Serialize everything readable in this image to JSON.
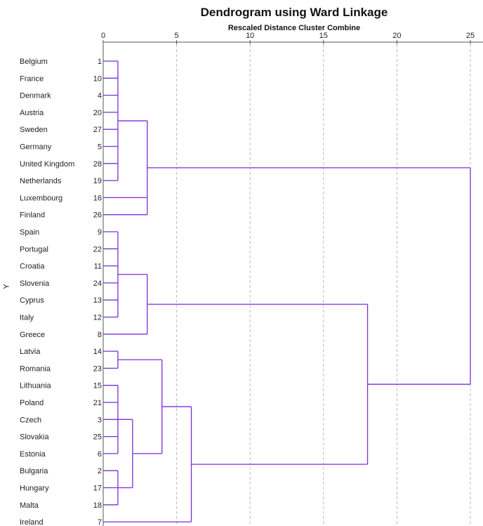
{
  "title": "Dendrogram using Ward Linkage",
  "subtitle": "Rescaled Distance Cluster Combine",
  "y_axis_label": "Y",
  "colors": {
    "line": "#7b2fd6",
    "grid": "#bbbbbb",
    "axis": "#555555",
    "text": "#222222"
  },
  "chart_data": {
    "type": "dendrogram",
    "title": "Dendrogram using Ward Linkage",
    "xlabel": "Rescaled Distance Cluster Combine",
    "ylabel": "Y",
    "x_ticks": [
      0,
      5,
      10,
      15,
      20,
      25
    ],
    "xlim": [
      0,
      25
    ],
    "grid": true,
    "leaves": [
      {
        "name": "Belgium",
        "id": "1"
      },
      {
        "name": "France",
        "id": "10"
      },
      {
        "name": "Denmark",
        "id": "4"
      },
      {
        "name": "Austria",
        "id": "20"
      },
      {
        "name": "Sweden",
        "id": "27"
      },
      {
        "name": "Germany",
        "id": "5"
      },
      {
        "name": "United Kingdom",
        "id": "28"
      },
      {
        "name": "Netherlands",
        "id": "19"
      },
      {
        "name": "Luxembourg",
        "id": "16"
      },
      {
        "name": "Finland",
        "id": "26"
      },
      {
        "name": "Spain",
        "id": "9"
      },
      {
        "name": "Portugal",
        "id": "22"
      },
      {
        "name": "Croatia",
        "id": "11"
      },
      {
        "name": "Slovenia",
        "id": "24"
      },
      {
        "name": "Cyprus",
        "id": "13"
      },
      {
        "name": "Italy",
        "id": "12"
      },
      {
        "name": "Greece",
        "id": "8"
      },
      {
        "name": "Latvia",
        "id": "14"
      },
      {
        "name": "Romania",
        "id": "23"
      },
      {
        "name": "Lithuania",
        "id": "15"
      },
      {
        "name": "Poland",
        "id": "21"
      },
      {
        "name": "Czech",
        "id": "3"
      },
      {
        "name": "Slovakia",
        "id": "25"
      },
      {
        "name": "Estonia",
        "id": "6"
      },
      {
        "name": "Bulgaria",
        "id": "2"
      },
      {
        "name": "Hungary",
        "id": "17"
      },
      {
        "name": "Malta",
        "id": "18"
      },
      {
        "name": "Ireland",
        "id": "7"
      }
    ],
    "merges": [
      {
        "children": [
          [
            "leaf",
            0
          ],
          [
            "leaf",
            1
          ],
          [
            "leaf",
            2
          ],
          [
            "leaf",
            3
          ],
          [
            "leaf",
            4
          ],
          [
            "leaf",
            5
          ],
          [
            "leaf",
            6
          ],
          [
            "leaf",
            7
          ]
        ],
        "height": 1.0
      },
      {
        "children": [
          [
            "node",
            0
          ],
          [
            "leaf",
            8
          ],
          [
            "leaf",
            9
          ]
        ],
        "height": 3.0
      },
      {
        "children": [
          [
            "leaf",
            10
          ],
          [
            "leaf",
            11
          ],
          [
            "leaf",
            12
          ],
          [
            "leaf",
            13
          ],
          [
            "leaf",
            14
          ],
          [
            "leaf",
            15
          ]
        ],
        "height": 1.0
      },
      {
        "children": [
          [
            "node",
            2
          ],
          [
            "leaf",
            16
          ]
        ],
        "height": 3.0
      },
      {
        "children": [
          [
            "leaf",
            17
          ],
          [
            "leaf",
            18
          ]
        ],
        "height": 1.0
      },
      {
        "children": [
          [
            "leaf",
            19
          ],
          [
            "leaf",
            20
          ],
          [
            "leaf",
            21
          ],
          [
            "leaf",
            22
          ],
          [
            "leaf",
            23
          ]
        ],
        "height": 1.0
      },
      {
        "children": [
          [
            "leaf",
            24
          ],
          [
            "leaf",
            25
          ],
          [
            "leaf",
            26
          ]
        ],
        "height": 1.0
      },
      {
        "children": [
          [
            "node",
            5
          ],
          [
            "node",
            6
          ]
        ],
        "height": 2.0
      },
      {
        "children": [
          [
            "node",
            4
          ],
          [
            "node",
            7
          ]
        ],
        "height": 4.0
      },
      {
        "children": [
          [
            "node",
            8
          ],
          [
            "leaf",
            27
          ]
        ],
        "height": 6.0
      },
      {
        "children": [
          [
            "node",
            3
          ],
          [
            "node",
            9
          ]
        ],
        "height": 18.0
      },
      {
        "children": [
          [
            "node",
            1
          ],
          [
            "node",
            10
          ]
        ],
        "height": 25.0
      }
    ]
  }
}
